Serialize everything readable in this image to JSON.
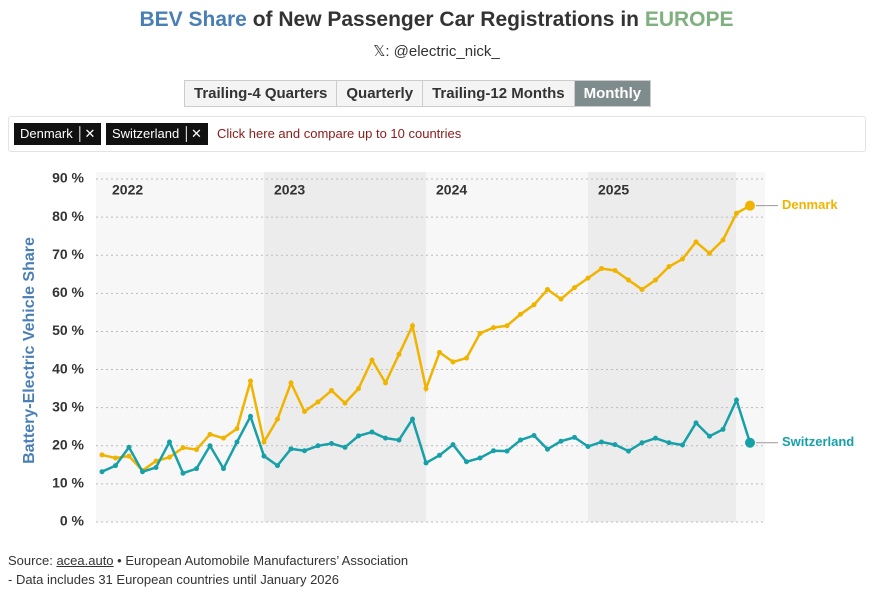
{
  "header": {
    "title_parts": [
      "BEV Share",
      "of New Passenger Car Registrations in",
      "EUROPE"
    ],
    "subtitle": "𝕏: @electric_nick_"
  },
  "controls": {
    "buttons": [
      "Trailing-4 Quarters",
      "Quarterly",
      "Trailing-12 Months",
      "Monthly"
    ],
    "active": "Monthly",
    "tags": [
      "Denmark",
      "Switzerland"
    ],
    "hint": "Click here and compare up to 10 countries"
  },
  "footer": {
    "source_prefix": "Source:",
    "source_link": "acea.auto",
    "source_rest": "• European Automobile Manufacturers’ Association",
    "note": "- Data includes 31 European countries until January 2026"
  },
  "chart_data": {
    "type": "line",
    "y_label": "Battery-Electric Vehicle Share",
    "categories": [
      "2022",
      null,
      null,
      null,
      null,
      null,
      null,
      null,
      null,
      null,
      null,
      null,
      "2023",
      null,
      null,
      null,
      null,
      null,
      null,
      null,
      null,
      null,
      null,
      null,
      "2024",
      null,
      null,
      null,
      null,
      null,
      null,
      null,
      null,
      null,
      null,
      null,
      "2025",
      null,
      null,
      null,
      null,
      null,
      null,
      null,
      null,
      null,
      null,
      null,
      null
    ],
    "ylim": [
      0,
      90
    ],
    "yticks": [
      {
        "value": 0,
        "label": "0 %"
      },
      {
        "value": 10,
        "label": "10 %"
      },
      {
        "value": 20,
        "label": "20 %"
      },
      {
        "value": 30,
        "label": "30 %"
      },
      {
        "value": 40,
        "label": "40 %"
      },
      {
        "value": 50,
        "label": "50 %"
      },
      {
        "value": 60,
        "label": "60 %"
      },
      {
        "value": 70,
        "label": "70 %"
      },
      {
        "value": 80,
        "label": "80 %"
      },
      {
        "value": 90,
        "label": "90 %"
      }
    ],
    "grid": true,
    "series": [
      {
        "name": "Denmark",
        "color": "#f0b400",
        "values": [
          17.6,
          16.8,
          17.3,
          13.5,
          16,
          17,
          19.5,
          19,
          23,
          22,
          24.5,
          37,
          21,
          27,
          36.5,
          29,
          31.5,
          34.5,
          31.2,
          35,
          42.5,
          36.5,
          44,
          51.5,
          35,
          44.5,
          42,
          43,
          49.5,
          51,
          51.5,
          54.5,
          57,
          61,
          58.5,
          61.5,
          64,
          66.5,
          66,
          63.5,
          61,
          63.5,
          67,
          69,
          73.5,
          70.5,
          74,
          81,
          83
        ]
      },
      {
        "name": "Switzerland",
        "color": "#17a0a8",
        "values": [
          13.2,
          14.8,
          19.6,
          13.2,
          14.3,
          21,
          12.8,
          14,
          20,
          14,
          21,
          27.7,
          17.3,
          14.8,
          19.2,
          18.7,
          20,
          20.6,
          19.6,
          22.6,
          23.6,
          22,
          21.5,
          27,
          15.5,
          17.5,
          20.3,
          15.8,
          16.8,
          18.7,
          18.6,
          21.5,
          22.7,
          19.1,
          21.2,
          22.2,
          19.8,
          21,
          20.3,
          18.6,
          20.8,
          22,
          20.8,
          20.2,
          26,
          22.5,
          24.3,
          32,
          20.8
        ]
      }
    ]
  }
}
